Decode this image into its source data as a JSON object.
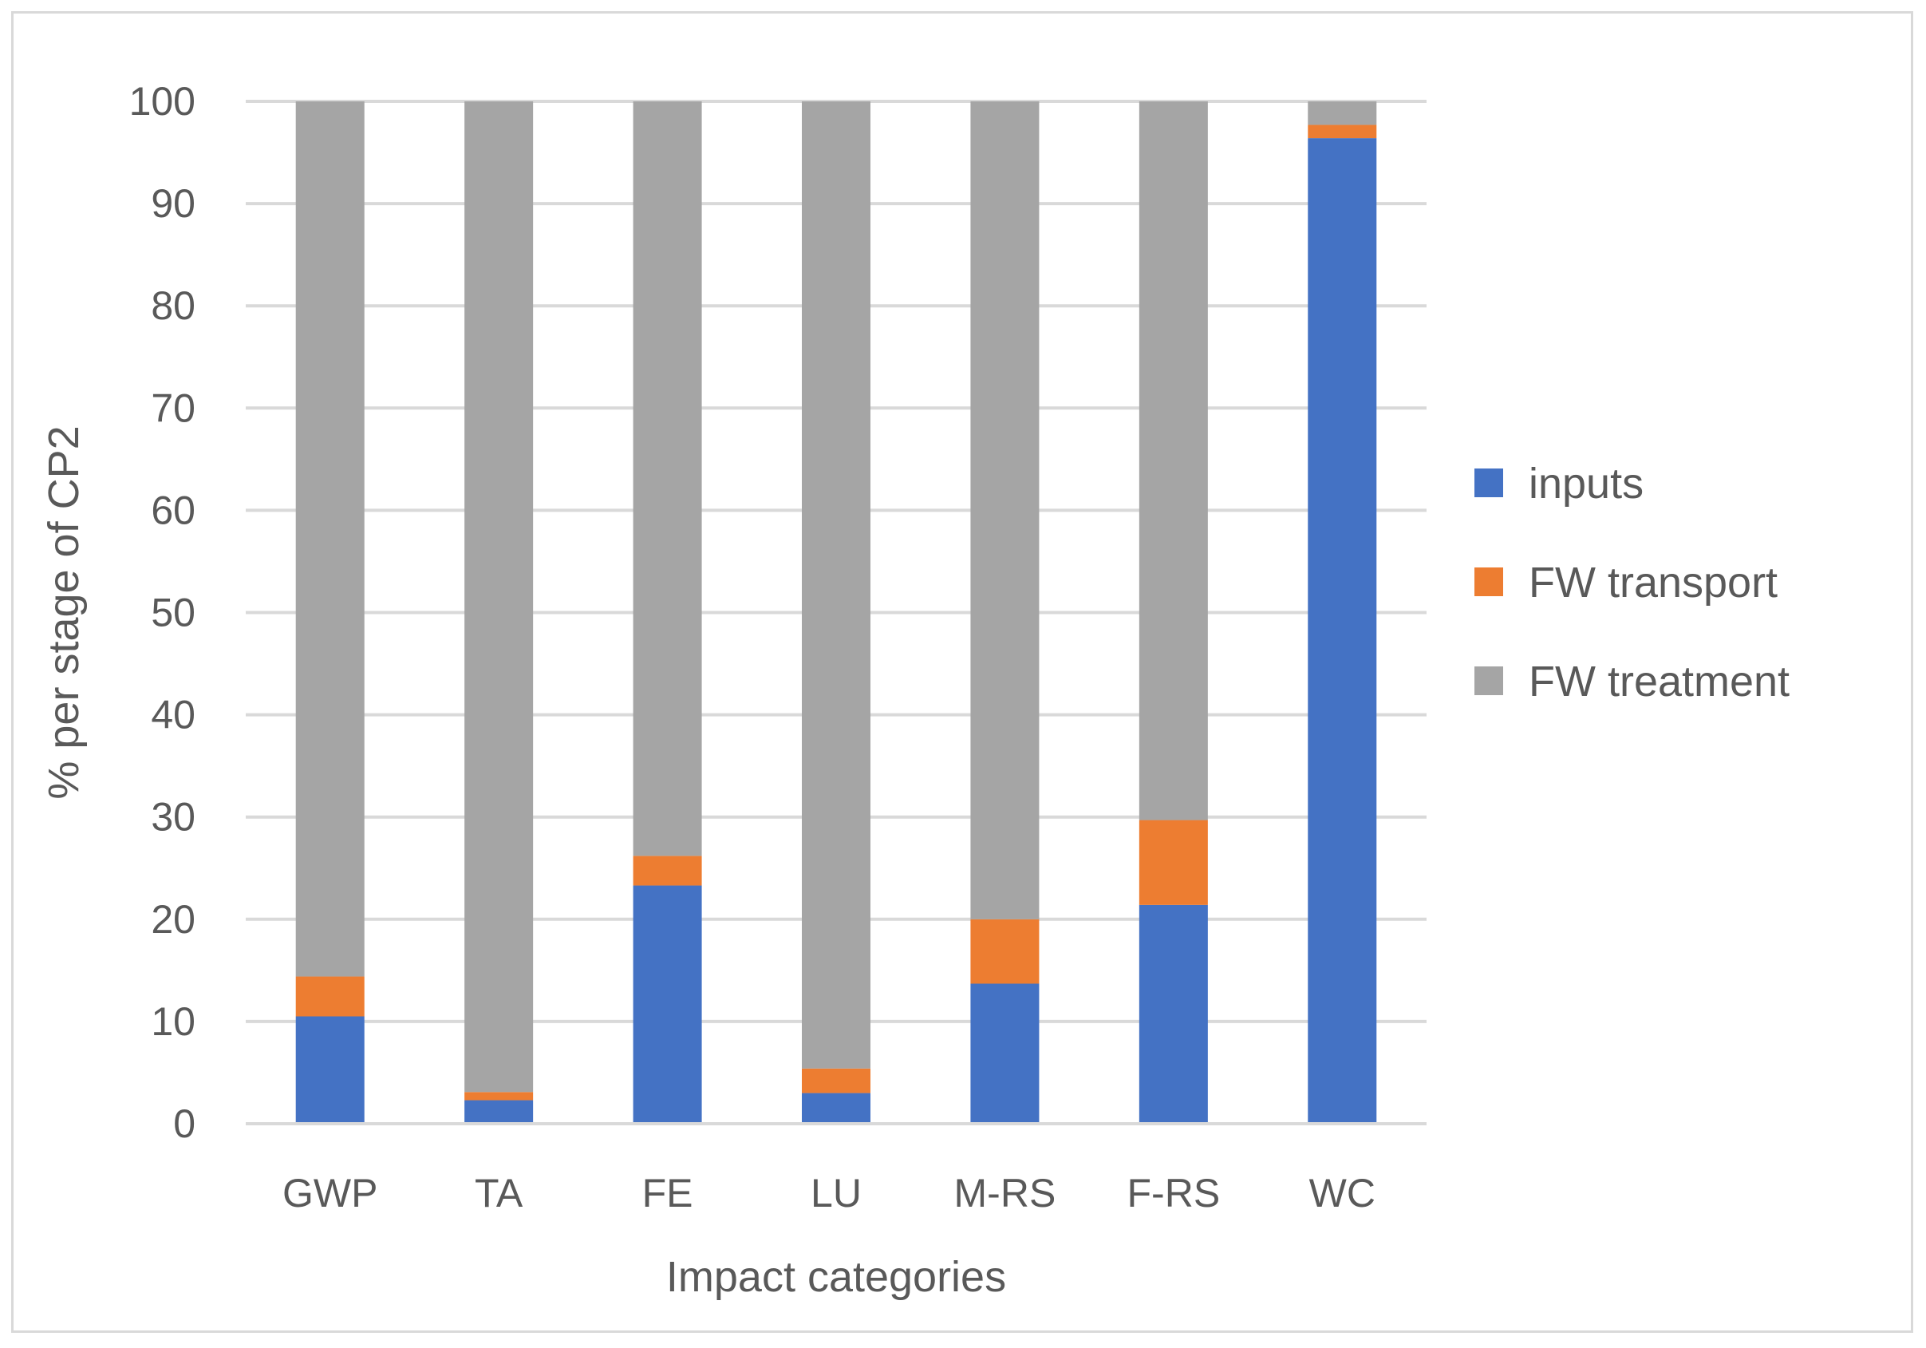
{
  "chart_data": {
    "type": "bar",
    "stacked": true,
    "title": "",
    "xlabel": "Impact categories",
    "ylabel": "% per stage of CP2",
    "ylim": [
      0,
      100
    ],
    "yticks": [
      "0",
      "10",
      "20",
      "30",
      "40",
      "50",
      "60",
      "70",
      "80",
      "90",
      "100"
    ],
    "grid": true,
    "legend_position": "right",
    "categories": [
      "GWP",
      "TA",
      "FE",
      "LU",
      "M-RS",
      "F-RS",
      "WC"
    ],
    "series": [
      {
        "name": "inputs",
        "color": "#4472C4",
        "values": [
          10.5,
          2.3,
          23.3,
          3.0,
          13.7,
          21.4,
          96.4
        ]
      },
      {
        "name": "FW transport",
        "color": "#ED7D31",
        "values": [
          3.9,
          0.8,
          2.9,
          2.4,
          6.3,
          8.3,
          1.3
        ]
      },
      {
        "name": "FW treatment",
        "color": "#A5A5A5",
        "values": [
          85.6,
          96.9,
          73.8,
          94.6,
          80.0,
          70.3,
          2.3
        ]
      }
    ]
  }
}
